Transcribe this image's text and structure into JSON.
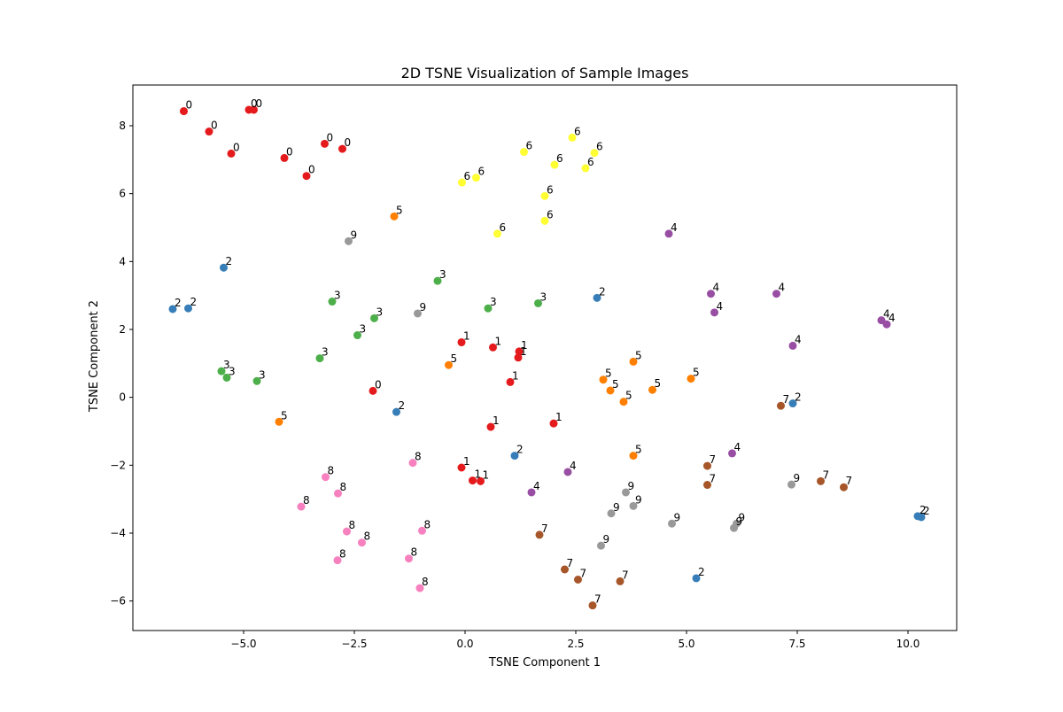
{
  "chart_data": {
    "type": "scatter",
    "title": "2D TSNE Visualization of Sample Images",
    "xlabel": "TSNE Component 1",
    "ylabel": "TSNE Component 2",
    "xlim": [
      -7.5,
      11.1
    ],
    "ylim": [
      -6.87,
      9.2
    ],
    "xticks": [
      -5.0,
      -2.5,
      0.0,
      2.5,
      5.0,
      7.5,
      10.0
    ],
    "xtick_labels": [
      "−5.0",
      "−2.5",
      "0.0",
      "2.5",
      "5.0",
      "7.5",
      "10.0"
    ],
    "yticks": [
      -6,
      -4,
      -2,
      0,
      2,
      4,
      6,
      8
    ],
    "ytick_labels": [
      "−6",
      "−4",
      "−2",
      "0",
      "2",
      "4",
      "6",
      "8"
    ],
    "grid": false,
    "legend": "none",
    "colors": {
      "0": "#e41a1c",
      "1": "#e41a1c",
      "2": "#377eb8",
      "3": "#4daf4a",
      "4": "#984ea3",
      "5": "#ff7f00",
      "6": "#ffff33",
      "7": "#a65628",
      "8": "#f781bf",
      "9": "#999999"
    },
    "points": [
      {
        "x": -6.35,
        "y": 8.43,
        "label": "0"
      },
      {
        "x": -5.78,
        "y": 7.83,
        "label": "0"
      },
      {
        "x": -5.28,
        "y": 7.18,
        "label": "0"
      },
      {
        "x": -4.88,
        "y": 8.47,
        "label": "0"
      },
      {
        "x": -4.77,
        "y": 8.47,
        "label": "0"
      },
      {
        "x": -4.08,
        "y": 7.05,
        "label": "0"
      },
      {
        "x": -3.17,
        "y": 7.47,
        "label": "0"
      },
      {
        "x": -2.77,
        "y": 7.32,
        "label": "0"
      },
      {
        "x": -3.58,
        "y": 6.52,
        "label": "0"
      },
      {
        "x": -2.08,
        "y": 0.19,
        "label": "0"
      },
      {
        "x": -0.08,
        "y": 1.62,
        "label": "1"
      },
      {
        "x": 0.63,
        "y": 1.47,
        "label": "1"
      },
      {
        "x": 1.22,
        "y": 1.35,
        "label": "1"
      },
      {
        "x": 1.2,
        "y": 1.17,
        "label": "1"
      },
      {
        "x": 1.02,
        "y": 0.45,
        "label": "1"
      },
      {
        "x": 0.58,
        "y": -0.87,
        "label": "1"
      },
      {
        "x": 2.0,
        "y": -0.77,
        "label": "1"
      },
      {
        "x": -0.08,
        "y": -2.07,
        "label": "1"
      },
      {
        "x": 0.17,
        "y": -2.45,
        "label": "1"
      },
      {
        "x": 0.35,
        "y": -2.47,
        "label": "1"
      },
      {
        "x": -5.45,
        "y": 3.82,
        "label": "2"
      },
      {
        "x": -6.6,
        "y": 2.6,
        "label": "2"
      },
      {
        "x": -6.25,
        "y": 2.62,
        "label": "2"
      },
      {
        "x": 2.98,
        "y": 2.93,
        "label": "2"
      },
      {
        "x": -1.55,
        "y": -0.43,
        "label": "2"
      },
      {
        "x": 1.12,
        "y": -1.72,
        "label": "2"
      },
      {
        "x": 7.4,
        "y": -0.18,
        "label": "2"
      },
      {
        "x": 5.22,
        "y": -5.33,
        "label": "2"
      },
      {
        "x": 10.22,
        "y": -3.5,
        "label": "2"
      },
      {
        "x": 10.3,
        "y": -3.53,
        "label": "2"
      },
      {
        "x": -0.62,
        "y": 3.43,
        "label": "3"
      },
      {
        "x": -3.0,
        "y": 2.82,
        "label": "3"
      },
      {
        "x": -2.05,
        "y": 2.33,
        "label": "3"
      },
      {
        "x": 0.52,
        "y": 2.62,
        "label": "3"
      },
      {
        "x": 1.65,
        "y": 2.77,
        "label": "3"
      },
      {
        "x": -2.43,
        "y": 1.83,
        "label": "3"
      },
      {
        "x": -3.28,
        "y": 1.15,
        "label": "3"
      },
      {
        "x": -5.5,
        "y": 0.77,
        "label": "3"
      },
      {
        "x": -5.38,
        "y": 0.58,
        "label": "3"
      },
      {
        "x": -4.7,
        "y": 0.48,
        "label": "3"
      },
      {
        "x": 4.6,
        "y": 4.82,
        "label": "4"
      },
      {
        "x": 5.55,
        "y": 3.05,
        "label": "4"
      },
      {
        "x": 7.03,
        "y": 3.05,
        "label": "4"
      },
      {
        "x": 5.63,
        "y": 2.5,
        "label": "4"
      },
      {
        "x": 9.4,
        "y": 2.27,
        "label": "4"
      },
      {
        "x": 9.52,
        "y": 2.15,
        "label": "4"
      },
      {
        "x": 7.4,
        "y": 1.52,
        "label": "4"
      },
      {
        "x": 6.03,
        "y": -1.65,
        "label": "4"
      },
      {
        "x": 2.32,
        "y": -2.2,
        "label": "4"
      },
      {
        "x": 1.5,
        "y": -2.8,
        "label": "4"
      },
      {
        "x": -1.6,
        "y": 5.33,
        "label": "5"
      },
      {
        "x": -0.37,
        "y": 0.95,
        "label": "5"
      },
      {
        "x": 3.8,
        "y": 1.05,
        "label": "5"
      },
      {
        "x": 3.12,
        "y": 0.52,
        "label": "5"
      },
      {
        "x": 3.28,
        "y": 0.2,
        "label": "5"
      },
      {
        "x": 4.23,
        "y": 0.22,
        "label": "5"
      },
      {
        "x": 5.1,
        "y": 0.55,
        "label": "5"
      },
      {
        "x": 3.58,
        "y": -0.13,
        "label": "5"
      },
      {
        "x": -4.2,
        "y": -0.72,
        "label": "5"
      },
      {
        "x": 3.8,
        "y": -1.72,
        "label": "5"
      },
      {
        "x": 2.42,
        "y": 7.65,
        "label": "6"
      },
      {
        "x": 1.33,
        "y": 7.23,
        "label": "6"
      },
      {
        "x": 2.92,
        "y": 7.2,
        "label": "6"
      },
      {
        "x": 2.02,
        "y": 6.85,
        "label": "6"
      },
      {
        "x": 2.72,
        "y": 6.75,
        "label": "6"
      },
      {
        "x": -0.07,
        "y": 6.33,
        "label": "6"
      },
      {
        "x": 0.25,
        "y": 6.47,
        "label": "6"
      },
      {
        "x": 1.8,
        "y": 5.93,
        "label": "6"
      },
      {
        "x": 1.8,
        "y": 5.2,
        "label": "6"
      },
      {
        "x": 0.73,
        "y": 4.82,
        "label": "6"
      },
      {
        "x": 7.13,
        "y": -0.25,
        "label": "7"
      },
      {
        "x": 5.47,
        "y": -2.02,
        "label": "7"
      },
      {
        "x": 5.47,
        "y": -2.58,
        "label": "7"
      },
      {
        "x": 8.03,
        "y": -2.47,
        "label": "7"
      },
      {
        "x": 8.55,
        "y": -2.65,
        "label": "7"
      },
      {
        "x": 1.68,
        "y": -4.05,
        "label": "7"
      },
      {
        "x": 2.25,
        "y": -5.07,
        "label": "7"
      },
      {
        "x": 2.55,
        "y": -5.37,
        "label": "7"
      },
      {
        "x": 3.5,
        "y": -5.42,
        "label": "7"
      },
      {
        "x": 2.88,
        "y": -6.13,
        "label": "7"
      },
      {
        "x": -1.18,
        "y": -1.93,
        "label": "8"
      },
      {
        "x": -3.15,
        "y": -2.35,
        "label": "8"
      },
      {
        "x": -2.87,
        "y": -2.83,
        "label": "8"
      },
      {
        "x": -3.7,
        "y": -3.22,
        "label": "8"
      },
      {
        "x": -2.67,
        "y": -3.95,
        "label": "8"
      },
      {
        "x": -0.97,
        "y": -3.93,
        "label": "8"
      },
      {
        "x": -2.33,
        "y": -4.28,
        "label": "8"
      },
      {
        "x": -1.27,
        "y": -4.75,
        "label": "8"
      },
      {
        "x": -2.88,
        "y": -4.8,
        "label": "8"
      },
      {
        "x": -1.02,
        "y": -5.62,
        "label": "8"
      },
      {
        "x": -2.63,
        "y": 4.6,
        "label": "9"
      },
      {
        "x": -1.07,
        "y": 2.47,
        "label": "9"
      },
      {
        "x": 3.63,
        "y": -2.8,
        "label": "9"
      },
      {
        "x": 3.8,
        "y": -3.2,
        "label": "9"
      },
      {
        "x": 3.3,
        "y": -3.42,
        "label": "9"
      },
      {
        "x": 4.67,
        "y": -3.72,
        "label": "9"
      },
      {
        "x": 6.13,
        "y": -3.72,
        "label": "9"
      },
      {
        "x": 6.07,
        "y": -3.85,
        "label": "9"
      },
      {
        "x": 7.37,
        "y": -2.57,
        "label": "9"
      },
      {
        "x": 3.07,
        "y": -4.37,
        "label": "9"
      }
    ]
  }
}
